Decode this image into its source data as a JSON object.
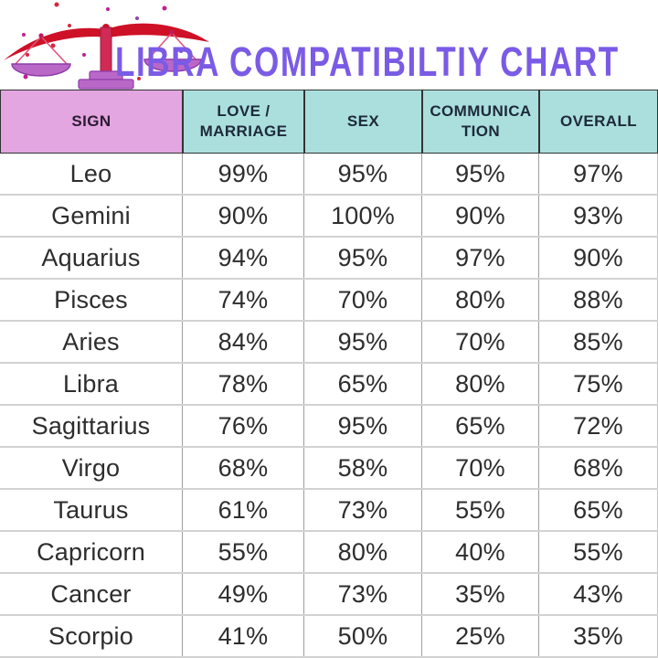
{
  "header": {
    "title": "LIBRA COMPATIBILTIY CHART",
    "icon": "libra-scales-icon"
  },
  "colors": {
    "title_purple": "#7A5BE6",
    "header_sign_bg": "#E3A6E0",
    "header_metric_bg": "#ABDFDE",
    "header_text": "#1D2A3A",
    "cell_text": "#2D2D2D",
    "icon_red": "#CE1126",
    "icon_magenta": "#D12A55",
    "icon_purple": "#BA68C8"
  },
  "table": {
    "columns": [
      {
        "label": "SIGN"
      },
      {
        "label": "LOVE / MARRIAGE"
      },
      {
        "label": "SEX"
      },
      {
        "label": "COMMUNICATION"
      },
      {
        "label": "OVERALL"
      }
    ],
    "rows": [
      [
        "Leo",
        "99%",
        "95%",
        "95%",
        "97%"
      ],
      [
        "Gemini",
        "90%",
        "100%",
        "90%",
        "93%"
      ],
      [
        "Aquarius",
        "94%",
        "95%",
        "97%",
        "90%"
      ],
      [
        "Pisces",
        "74%",
        "70%",
        "80%",
        "88%"
      ],
      [
        "Aries",
        "84%",
        "95%",
        "70%",
        "85%"
      ],
      [
        "Libra",
        "78%",
        "65%",
        "80%",
        "75%"
      ],
      [
        "Sagittarius",
        "76%",
        "95%",
        "65%",
        "72%"
      ],
      [
        "Virgo",
        "68%",
        "58%",
        "70%",
        "68%"
      ],
      [
        "Taurus",
        "61%",
        "73%",
        "55%",
        "65%"
      ],
      [
        "Capricorn",
        "55%",
        "80%",
        "40%",
        "55%"
      ],
      [
        "Cancer",
        "49%",
        "73%",
        "35%",
        "43%"
      ],
      [
        "Scorpio",
        "41%",
        "50%",
        "25%",
        "35%"
      ]
    ]
  },
  "chart_data": {
    "type": "table",
    "title": "LIBRA COMPATIBILTIY CHART",
    "columns": [
      "SIGN",
      "LOVE / MARRIAGE",
      "SEX",
      "COMMUNICATION",
      "OVERALL"
    ],
    "unit": "%",
    "rows": [
      {
        "sign": "Leo",
        "love_marriage": 99,
        "sex": 95,
        "communication": 95,
        "overall": 97
      },
      {
        "sign": "Gemini",
        "love_marriage": 90,
        "sex": 100,
        "communication": 90,
        "overall": 93
      },
      {
        "sign": "Aquarius",
        "love_marriage": 94,
        "sex": 95,
        "communication": 97,
        "overall": 90
      },
      {
        "sign": "Pisces",
        "love_marriage": 74,
        "sex": 70,
        "communication": 80,
        "overall": 88
      },
      {
        "sign": "Aries",
        "love_marriage": 84,
        "sex": 95,
        "communication": 70,
        "overall": 85
      },
      {
        "sign": "Libra",
        "love_marriage": 78,
        "sex": 65,
        "communication": 80,
        "overall": 75
      },
      {
        "sign": "Sagittarius",
        "love_marriage": 76,
        "sex": 95,
        "communication": 65,
        "overall": 72
      },
      {
        "sign": "Virgo",
        "love_marriage": 68,
        "sex": 58,
        "communication": 70,
        "overall": 68
      },
      {
        "sign": "Taurus",
        "love_marriage": 61,
        "sex": 73,
        "communication": 55,
        "overall": 65
      },
      {
        "sign": "Capricorn",
        "love_marriage": 55,
        "sex": 80,
        "communication": 40,
        "overall": 55
      },
      {
        "sign": "Cancer",
        "love_marriage": 49,
        "sex": 73,
        "communication": 35,
        "overall": 43
      },
      {
        "sign": "Scorpio",
        "love_marriage": 41,
        "sex": 50,
        "communication": 25,
        "overall": 35
      }
    ]
  }
}
